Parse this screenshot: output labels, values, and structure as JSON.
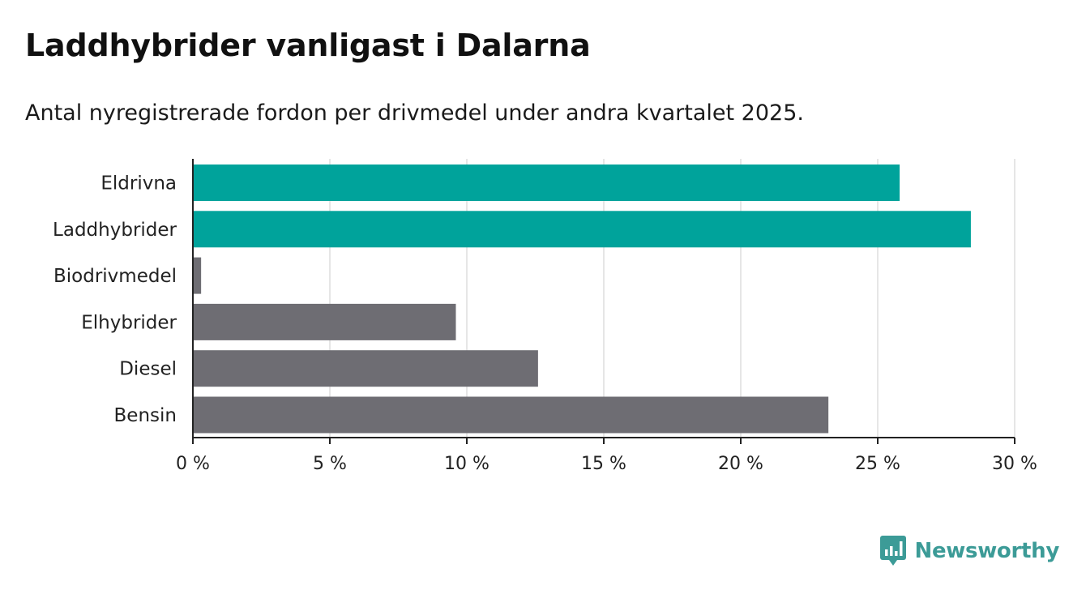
{
  "chart_data": {
    "type": "bar",
    "orientation": "horizontal",
    "title": "Laddhybrider vanligast i Dalarna",
    "subtitle": "Antal nyregistrerade fordon per drivmedel under andra kvartalet 2025.",
    "categories": [
      "Eldrivna",
      "Laddhybrider",
      "Biodrivmedel",
      "Elhybrider",
      "Diesel",
      "Bensin"
    ],
    "values": [
      25.8,
      28.4,
      0.3,
      9.6,
      12.6,
      23.2
    ],
    "bar_colors": [
      "#00a39b",
      "#00a39b",
      "#6e6d73",
      "#6e6d73",
      "#6e6d73",
      "#6e6d73"
    ],
    "xlim": [
      0,
      30
    ],
    "x_ticks": [
      0,
      5,
      10,
      15,
      20,
      25,
      30
    ],
    "x_tick_labels": [
      "0 %",
      "5 %",
      "10 %",
      "15 %",
      "20 %",
      "25 %",
      "30 %"
    ],
    "xlabel": "",
    "ylabel": "",
    "grid": true,
    "legend": "none"
  },
  "colors": {
    "highlight": "#00a39b",
    "default": "#6e6d73",
    "grid": "#dddddd",
    "axis": "#222222",
    "brand": "#3c9b97"
  },
  "brand": {
    "name": "Newsworthy",
    "icon": "newsworthy-chart-icon"
  }
}
